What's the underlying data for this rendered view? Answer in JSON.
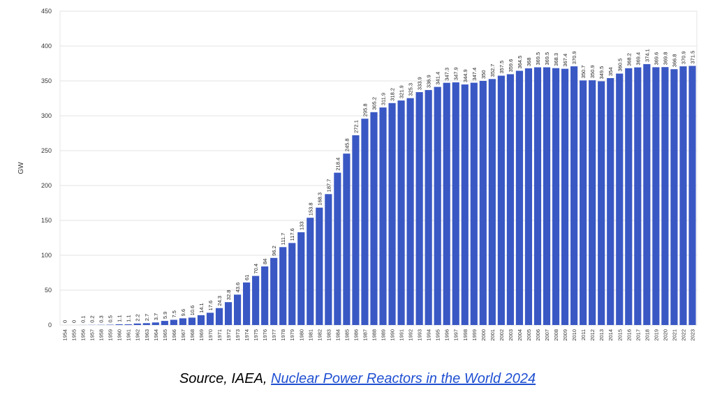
{
  "chart_data": {
    "type": "bar",
    "title": "",
    "xlabel": "",
    "ylabel": "GW",
    "ylim": [
      0,
      450
    ],
    "yticks": [
      0,
      50,
      100,
      150,
      200,
      250,
      300,
      350,
      400,
      450
    ],
    "grid": true,
    "legend": "none",
    "bar_color": "#3a58c4",
    "categories": [
      "1954",
      "1955",
      "1956",
      "1957",
      "1958",
      "1959",
      "1960",
      "1961",
      "1962",
      "1963",
      "1964",
      "1965",
      "1966",
      "1967",
      "1968",
      "1969",
      "1970",
      "1971",
      "1972",
      "1973",
      "1974",
      "1975",
      "1976",
      "1977",
      "1978",
      "1979",
      "1980",
      "1981",
      "1982",
      "1983",
      "1984",
      "1985",
      "1986",
      "1987",
      "1988",
      "1989",
      "1990",
      "1991",
      "1992",
      "1993",
      "1994",
      "1995",
      "1996",
      "1997",
      "1998",
      "1999",
      "2000",
      "2001",
      "2002",
      "2003",
      "2004",
      "2005",
      "2006",
      "2007",
      "2008",
      "2009",
      "2010",
      "2011",
      "2012",
      "2013",
      "2014",
      "2015",
      "2016",
      "2017",
      "2018",
      "2019",
      "2020",
      "2021",
      "2022",
      "2023"
    ],
    "values": [
      0,
      0,
      0.1,
      0.2,
      0.3,
      0.5,
      1.1,
      1.1,
      2.2,
      2.7,
      3.7,
      5.9,
      7.5,
      9.6,
      10.6,
      14.1,
      17.6,
      24.3,
      32.8,
      43.6,
      61,
      70.4,
      84,
      96.2,
      111.7,
      117.6,
      133,
      153.8,
      168.3,
      187.7,
      218.4,
      245.8,
      272.1,
      295.8,
      305.2,
      311.9,
      318.2,
      321.9,
      325.3,
      333.9,
      336.9,
      341.4,
      347.3,
      347.9,
      344.9,
      347.4,
      350,
      352.7,
      357.5,
      359.6,
      364.5,
      368,
      369.5,
      369.5,
      368.3,
      367.4,
      370.9,
      350.7,
      350.9,
      349.5,
      354,
      360.5,
      368.2,
      369.4,
      374.1,
      369.6,
      369.8,
      366.8,
      370.9,
      371.5
    ],
    "labels": [
      "0",
      "0",
      "0.1",
      "0.2",
      "0.3",
      "0.5",
      "1.1",
      "1.1",
      "2.2",
      "2.7",
      "3.7",
      "5.9",
      "7.5",
      "9.6",
      "10.6",
      "14.1",
      "17.6",
      "24.3",
      "32.8",
      "43.6",
      "61",
      "70.4",
      "84",
      "96.2",
      "111.7",
      "117.6",
      "133",
      "153.8",
      "168.3",
      "187.7",
      "218.4",
      "245.8",
      "272.1",
      "295.8",
      "305.2",
      "311.9",
      "318.2",
      "321.9",
      "325.3",
      "333.9",
      "336.9",
      "341.4",
      "347.3",
      "347.9",
      "344.9",
      "347.4",
      "350",
      "352.7",
      "357.5",
      "359.6",
      "364.5",
      "368",
      "369.5",
      "369.5",
      "368.3",
      "367.4",
      "370.9",
      "350.7",
      "350.9",
      "349.5",
      "354",
      "360.5",
      "368.2",
      "369.4",
      "374.1",
      "369.6",
      "369.8",
      "366.8",
      "370.9",
      "371.5"
    ]
  },
  "source": {
    "prefix": "Source, IAEA, ",
    "link_text": "Nuclear Power Reactors in the World 2024",
    "link_color": "#1f4fd1"
  }
}
